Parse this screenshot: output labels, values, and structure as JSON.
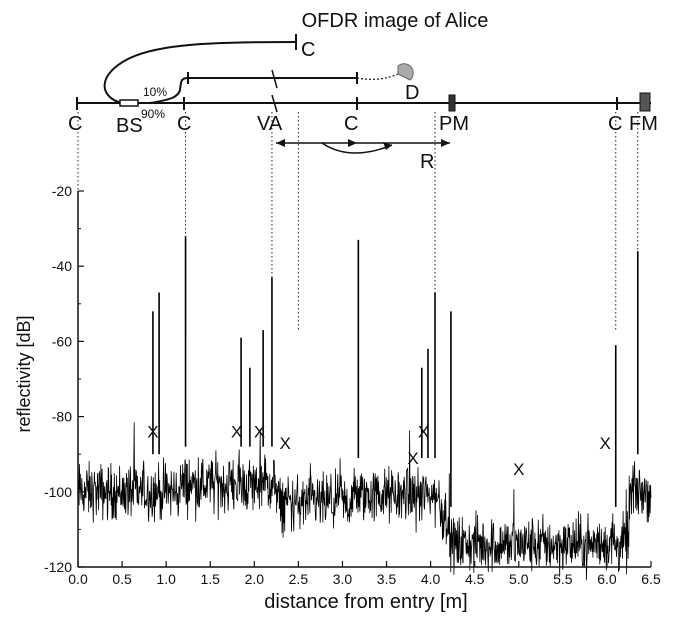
{
  "chart_data": {
    "type": "line",
    "title": "OFDR image of Alice",
    "xlabel": "distance from entry [m]",
    "ylabel": "reflectivity [dB]",
    "xlim": [
      0.0,
      6.5
    ],
    "ylim": [
      -120,
      -20
    ],
    "x_ticks": [
      0.0,
      0.5,
      1.0,
      1.5,
      2.0,
      2.5,
      3.0,
      3.5,
      4.0,
      4.5,
      5.0,
      5.5,
      6.0,
      6.5
    ],
    "x_tick_labels": [
      "0.0",
      "0.5",
      "1.0",
      "1.5",
      "2.0",
      "2.5",
      "3.0",
      "3.5",
      "4.0",
      "4.5",
      "5.0",
      "5.5",
      "6.0",
      "6.5"
    ],
    "y_ticks": [
      -120,
      -100,
      -80,
      -60,
      -40,
      -20
    ],
    "y_tick_labels": [
      "-120",
      "-100",
      "-80",
      "-60",
      "-40",
      "-20"
    ],
    "grid": false,
    "color": "#000000",
    "segments": [
      {
        "x_start": 0.0,
        "x_end": 1.15,
        "level": -100
      },
      {
        "x_start": 1.15,
        "x_end": 2.25,
        "level": -98
      },
      {
        "x_start": 2.25,
        "x_end": 3.1,
        "level": -103
      },
      {
        "x_start": 3.1,
        "x_end": 4.1,
        "level": -101
      },
      {
        "x_start": 4.1,
        "x_end": 4.2,
        "level": -106
      },
      {
        "x_start": 4.2,
        "x_end": 6.25,
        "level": -114
      },
      {
        "x_start": 6.25,
        "x_end": 6.5,
        "level": -100
      }
    ],
    "peaks": [
      {
        "x": 0.85,
        "y": -52
      },
      {
        "x": 0.92,
        "y": -47
      },
      {
        "x": 1.22,
        "y": -32
      },
      {
        "x": 1.85,
        "y": -59
      },
      {
        "x": 1.95,
        "y": -67
      },
      {
        "x": 2.1,
        "y": -57
      },
      {
        "x": 2.2,
        "y": -43
      },
      {
        "x": 3.18,
        "y": -33
      },
      {
        "x": 3.9,
        "y": -67
      },
      {
        "x": 3.97,
        "y": -62
      },
      {
        "x": 4.05,
        "y": -47
      },
      {
        "x": 4.23,
        "y": -52
      },
      {
        "x": 6.1,
        "y": -61
      },
      {
        "x": 6.35,
        "y": -36
      }
    ],
    "x_markers": [
      {
        "x": 0.85,
        "y": -84
      },
      {
        "x": 1.8,
        "y": -84
      },
      {
        "x": 2.06,
        "y": -84
      },
      {
        "x": 2.35,
        "y": -87
      },
      {
        "x": 3.8,
        "y": -91
      },
      {
        "x": 3.92,
        "y": -84
      },
      {
        "x": 5.0,
        "y": -94
      },
      {
        "x": 5.98,
        "y": -87
      }
    ],
    "marker_symbol": "X",
    "dotted_guides": [
      0.0,
      1.22,
      2.2,
      2.5,
      4.05,
      6.1,
      6.35
    ],
    "schematic": {
      "labels": [
        {
          "id": "c1",
          "text": "C"
        },
        {
          "id": "bs",
          "text": "BS"
        },
        {
          "id": "c2",
          "text": "C"
        },
        {
          "id": "va",
          "text": "VA"
        },
        {
          "id": "c3",
          "text": "C"
        },
        {
          "id": "pm",
          "text": "PM"
        },
        {
          "id": "c4",
          "text": "C"
        },
        {
          "id": "fm",
          "text": "FM"
        },
        {
          "id": "c_top",
          "text": "C"
        },
        {
          "id": "d",
          "text": "D"
        },
        {
          "id": "r",
          "text": "R"
        }
      ],
      "ratio_top": "10%",
      "ratio_bottom": "90%"
    }
  }
}
